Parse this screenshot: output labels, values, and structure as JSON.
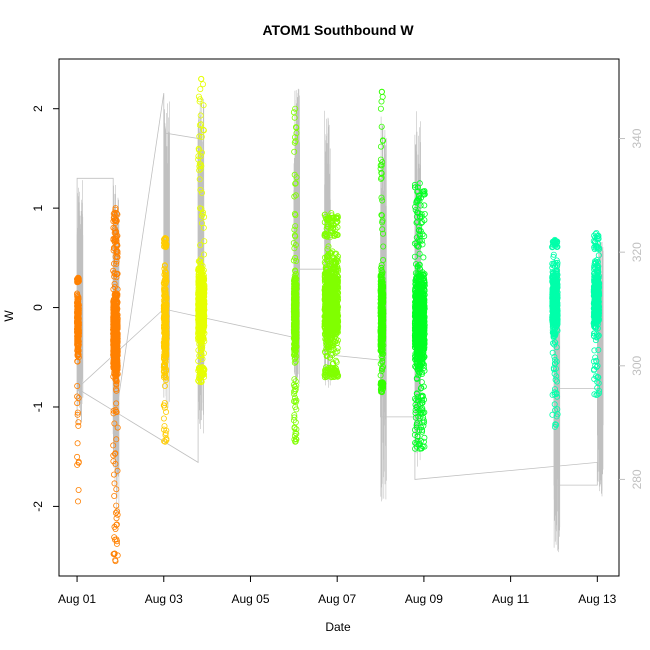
{
  "chart_data": {
    "type": "scatter",
    "title": "ATOM1 Southbound W",
    "xlabel": "Date",
    "ylabel": "W",
    "xlim": [
      "2024-07-31T14:00",
      "2024-08-13T12:00"
    ],
    "ylim": [
      -2.7,
      2.5
    ],
    "x_ticks": [
      "Aug 01",
      "Aug 03",
      "Aug 05",
      "Aug 07",
      "Aug 09",
      "Aug 11",
      "Aug 13"
    ],
    "x_tick_dates": [
      "2024-08-01",
      "2024-08-03",
      "2024-08-05",
      "2024-08-07",
      "2024-08-09",
      "2024-08-11",
      "2024-08-13"
    ],
    "y_ticks": [
      -2,
      -1,
      0,
      1,
      2
    ],
    "secondary_axis": {
      "ticks": [
        280,
        300,
        320,
        340
      ],
      "ylim": [
        263,
        354
      ],
      "color": "#c0c0c0"
    },
    "grid": false,
    "legend": "none",
    "series": [
      {
        "date": "2024-08-01",
        "color": "#ff8000",
        "clusters": [
          {
            "x_from": "2024-08-01T00:00",
            "x_to": "2024-08-01T01:00",
            "y_min": -1.95,
            "y_max": 0.3,
            "core_min": -0.6,
            "core_max": 0.25,
            "count": 260
          },
          {
            "x_from": "2024-08-01T20:00",
            "x_to": "2024-08-01T22:30",
            "y_min": -2.55,
            "y_max": 1.0,
            "core_min": -0.9,
            "core_max": 0.3,
            "count": 700
          }
        ]
      },
      {
        "date": "2024-08-03",
        "color": "#ffcc00",
        "clusters": [
          {
            "x_from": "2024-08-03T00:00",
            "x_to": "2024-08-03T01:30",
            "y_min": -1.35,
            "y_max": 0.7,
            "core_min": -0.9,
            "core_max": 0.6,
            "count": 300
          }
        ]
      },
      {
        "date": "2024-08-04",
        "color": "#e6ff00",
        "clusters": [
          {
            "x_from": "2024-08-03T19:00",
            "x_to": "2024-08-03T22:30",
            "y_min": -0.75,
            "y_max": 2.3,
            "core_min": -0.6,
            "core_max": 0.6,
            "count": 650
          }
        ]
      },
      {
        "date": "2024-08-06",
        "color": "#80ff00",
        "clusters": [
          {
            "x_from": "2024-08-06T00:00",
            "x_to": "2024-08-06T01:30",
            "y_min": -1.35,
            "y_max": 2.0,
            "core_min": -0.7,
            "core_max": 0.55,
            "count": 450
          },
          {
            "x_from": "2024-08-06T17:00",
            "x_to": "2024-08-07T00:30",
            "y_min": -0.7,
            "y_max": 0.95,
            "core_min": -0.6,
            "core_max": 0.7,
            "count": 1100
          }
        ]
      },
      {
        "date": "2024-08-08",
        "color": "#33ff00",
        "clusters": [
          {
            "x_from": "2024-08-08T00:00",
            "x_to": "2024-08-08T01:30",
            "y_min": -0.85,
            "y_max": 2.17,
            "core_min": -0.75,
            "core_max": 0.55,
            "count": 450
          }
        ]
      },
      {
        "date": "2024-08-09",
        "color": "#00ff22",
        "clusters": [
          {
            "x_from": "2024-08-08T19:00",
            "x_to": "2024-08-09T00:30",
            "y_min": -1.42,
            "y_max": 1.25,
            "core_min": -0.85,
            "core_max": 0.6,
            "count": 950
          }
        ]
      },
      {
        "date": "2024-08-12",
        "color": "#00ffaa",
        "clusters": [
          {
            "x_from": "2024-08-11T23:00",
            "x_to": "2024-08-12T02:00",
            "y_min": -1.2,
            "y_max": 0.68,
            "core_min": -0.45,
            "core_max": 0.6,
            "count": 500
          },
          {
            "x_from": "2024-08-12T22:00",
            "x_to": "2024-08-13T01:00",
            "y_min": -0.88,
            "y_max": 0.75,
            "core_min": -0.4,
            "core_max": 0.58,
            "count": 450
          }
        ]
      }
    ],
    "secondary_line": {
      "color": "#c0c0c0",
      "points": [
        [
          "2024-08-01T00:00",
          290
        ],
        [
          "2024-08-01T00:00",
          333
        ],
        [
          "2024-08-01T20:00",
          333
        ],
        [
          "2024-08-01T20:00",
          288
        ],
        [
          "2024-08-03T00:00",
          348
        ],
        [
          "2024-08-03T00:00",
          312
        ],
        [
          "2024-08-03T00:00",
          341
        ],
        [
          "2024-08-03T19:00",
          340
        ],
        [
          "2024-08-03T19:00",
          283
        ],
        [
          "2024-08-01T00:00",
          296
        ],
        [
          "2024-08-03T00:00",
          310
        ],
        [
          "2024-08-06T00:00",
          305
        ],
        [
          "2024-08-06T00:00",
          317
        ],
        [
          "2024-08-06T17:00",
          317
        ],
        [
          "2024-08-06T17:00",
          302
        ],
        [
          "2024-08-08T00:00",
          301
        ],
        [
          "2024-08-08T00:00",
          291
        ],
        [
          "2024-08-08T19:00",
          291
        ],
        [
          "2024-08-08T19:00",
          280
        ],
        [
          "2024-08-13T00:00",
          283
        ],
        [
          "2024-08-13T00:00",
          279
        ],
        [
          "2024-08-12T00:00",
          279
        ],
        [
          "2024-08-12T00:00",
          296
        ],
        [
          "2024-08-13T00:00",
          296
        ]
      ],
      "spikes": [
        {
          "x": "2024-08-01T00:00",
          "low": 290,
          "high": 333
        },
        {
          "x": "2024-08-01T20:00",
          "low": 274,
          "high": 332
        },
        {
          "x": "2024-08-03T00:00",
          "low": 292,
          "high": 347
        },
        {
          "x": "2024-08-03T19:00",
          "low": 288,
          "high": 348
        },
        {
          "x": "2024-08-06T00:00",
          "low": 296,
          "high": 349
        },
        {
          "x": "2024-08-06T17:00",
          "low": 296,
          "high": 346
        },
        {
          "x": "2024-08-08T00:00",
          "low": 276,
          "high": 344
        },
        {
          "x": "2024-08-08T19:00",
          "low": 282,
          "high": 345
        },
        {
          "x": "2024-08-12T00:00",
          "low": 267,
          "high": 318
        },
        {
          "x": "2024-08-13T00:00",
          "low": 277,
          "high": 322
        }
      ]
    }
  }
}
